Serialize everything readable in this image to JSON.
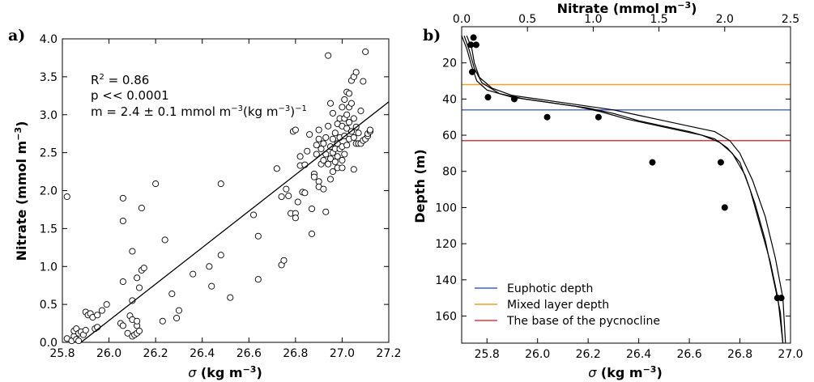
{
  "chart_data": [
    {
      "type": "scatter",
      "panel_label": "a)",
      "xlabel_sym": "σ",
      "xlabel_unit": " (kg m",
      "xlabel_exp": "−3",
      "xlabel_close": ")",
      "ylabel": "Nitrate (mmol m",
      "ylabel_exp": "−3",
      "ylabel_close": ")",
      "xlim": [
        25.8,
        27.2
      ],
      "ylim": [
        0.0,
        4.0
      ],
      "xticks": [
        "25.8",
        "26.0",
        "26.2",
        "26.4",
        "26.6",
        "26.8",
        "27.0",
        "27.2"
      ],
      "yticks": [
        "0.0",
        "0.5",
        "1.0",
        "1.5",
        "2.0",
        "2.5",
        "3.0",
        "3.5",
        "4.0"
      ],
      "grid": false,
      "annotation": {
        "r2_base": "R",
        "r2_sup": "2",
        "r2_rest": "  = 0.86",
        "p_text": "p << 0.0001",
        "m_text": "m = 2.4 ± 0.1 mmol m",
        "m_sup": "−3",
        "m_mid": "(kg m",
        "m_sup2": "−3",
        "m_end": ")",
        "m_sup3": "−1"
      },
      "fit_line": {
        "x": [
          25.88,
          27.2
        ],
        "y": [
          0.0,
          3.17
        ]
      },
      "series": [
        {
          "marker": "open-circle",
          "points": [
            [
              25.82,
              1.92
            ],
            [
              25.82,
              0.05
            ],
            [
              25.84,
              0.02
            ],
            [
              25.85,
              0.08
            ],
            [
              25.85,
              0.15
            ],
            [
              25.86,
              0.04
            ],
            [
              25.86,
              0.18
            ],
            [
              25.87,
              0.12
            ],
            [
              25.87,
              0.02
            ],
            [
              25.88,
              0.14
            ],
            [
              25.89,
              0.1
            ],
            [
              25.9,
              0.16
            ],
            [
              25.9,
              0.4
            ],
            [
              25.91,
              0.36
            ],
            [
              25.92,
              0.38
            ],
            [
              25.93,
              0.33
            ],
            [
              25.94,
              0.18
            ],
            [
              25.95,
              0.2
            ],
            [
              25.95,
              0.36
            ],
            [
              25.97,
              0.42
            ],
            [
              25.99,
              0.5
            ],
            [
              26.05,
              0.25
            ],
            [
              26.06,
              0.22
            ],
            [
              26.06,
              0.8
            ],
            [
              26.06,
              1.6
            ],
            [
              26.06,
              1.9
            ],
            [
              26.08,
              0.12
            ],
            [
              26.09,
              0.35
            ],
            [
              26.1,
              0.3
            ],
            [
              26.1,
              0.08
            ],
            [
              26.11,
              0.1
            ],
            [
              26.1,
              0.55
            ],
            [
              26.1,
              1.2
            ],
            [
              26.12,
              0.12
            ],
            [
              26.12,
              0.22
            ],
            [
              26.12,
              0.28
            ],
            [
              26.13,
              0.15
            ],
            [
              26.12,
              0.85
            ],
            [
              26.13,
              0.72
            ],
            [
              26.14,
              0.95
            ],
            [
              26.14,
              1.77
            ],
            [
              26.15,
              0.98
            ],
            [
              26.2,
              2.09
            ],
            [
              26.23,
              0.28
            ],
            [
              26.24,
              1.35
            ],
            [
              26.27,
              0.64
            ],
            [
              26.29,
              0.32
            ],
            [
              26.3,
              0.42
            ],
            [
              26.36,
              0.9
            ],
            [
              26.43,
              1.0
            ],
            [
              26.44,
              0.74
            ],
            [
              26.48,
              2.09
            ],
            [
              26.48,
              1.15
            ],
            [
              26.52,
              0.59
            ],
            [
              26.62,
              1.68
            ],
            [
              26.64,
              0.83
            ],
            [
              26.64,
              1.4
            ],
            [
              26.72,
              2.29
            ],
            [
              26.74,
              1.02
            ],
            [
              26.75,
              1.08
            ],
            [
              26.74,
              1.92
            ],
            [
              26.76,
              2.02
            ],
            [
              26.77,
              1.93
            ],
            [
              26.78,
              1.7
            ],
            [
              26.79,
              2.78
            ],
            [
              26.8,
              2.8
            ],
            [
              26.8,
              1.7
            ],
            [
              26.8,
              1.64
            ],
            [
              26.81,
              1.85
            ],
            [
              26.82,
              2.45
            ],
            [
              26.82,
              2.33
            ],
            [
              26.83,
              1.98
            ],
            [
              26.84,
              1.97
            ],
            [
              26.84,
              2.34
            ],
            [
              26.85,
              2.52
            ],
            [
              26.86,
              2.74
            ],
            [
              26.87,
              1.43
            ],
            [
              26.87,
              1.76
            ],
            [
              26.88,
              2.22
            ],
            [
              26.88,
              2.18
            ],
            [
              26.89,
              2.48
            ],
            [
              26.89,
              2.6
            ],
            [
              26.9,
              2.12
            ],
            [
              26.9,
              2.05
            ],
            [
              26.9,
              2.68
            ],
            [
              26.9,
              2.8
            ],
            [
              26.91,
              2.35
            ],
            [
              26.91,
              2.55
            ],
            [
              26.92,
              2.02
            ],
            [
              26.92,
              2.4
            ],
            [
              26.92,
              2.62
            ],
            [
              26.93,
              1.72
            ],
            [
              26.93,
              2.48
            ],
            [
              26.93,
              2.7
            ],
            [
              26.94,
              2.35
            ],
            [
              26.94,
              2.85
            ],
            [
              26.94,
              3.78
            ],
            [
              26.95,
              2.15
            ],
            [
              26.95,
              2.42
            ],
            [
              26.95,
              2.58
            ],
            [
              26.95,
              3.15
            ],
            [
              26.96,
              2.25
            ],
            [
              26.96,
              2.5
            ],
            [
              26.96,
              2.68
            ],
            [
              26.96,
              3.02
            ],
            [
              26.97,
              2.38
            ],
            [
              26.97,
              2.55
            ],
            [
              26.97,
              2.76
            ],
            [
              26.98,
              2.45
            ],
            [
              26.98,
              2.62
            ],
            [
              26.98,
              2.88
            ],
            [
              26.98,
              2.3
            ],
            [
              26.99,
              2.55
            ],
            [
              26.99,
              2.7
            ],
            [
              26.99,
              2.95
            ],
            [
              27.0,
              2.58
            ],
            [
              27.0,
              2.3
            ],
            [
              27.0,
              2.85
            ],
            [
              27.0,
              3.1
            ],
            [
              27.0,
              2.4
            ],
            [
              27.01,
              2.72
            ],
            [
              27.01,
              2.48
            ],
            [
              27.01,
              2.95
            ],
            [
              27.01,
              3.2
            ],
            [
              27.02,
              2.6
            ],
            [
              27.02,
              2.82
            ],
            [
              27.02,
              3.3
            ],
            [
              27.02,
              3.0
            ],
            [
              27.03,
              2.68
            ],
            [
              27.03,
              2.9
            ],
            [
              27.03,
              3.28
            ],
            [
              27.03,
              3.1
            ],
            [
              27.04,
              2.78
            ],
            [
              27.04,
              3.15
            ],
            [
              27.04,
              3.45
            ],
            [
              27.05,
              2.7
            ],
            [
              27.05,
              2.28
            ],
            [
              27.05,
              2.95
            ],
            [
              27.05,
              3.5
            ],
            [
              27.06,
              2.62
            ],
            [
              27.06,
              2.84
            ],
            [
              27.06,
              3.56
            ],
            [
              27.07,
              2.62
            ],
            [
              27.07,
              2.76
            ],
            [
              27.08,
              2.62
            ],
            [
              27.08,
              3.05
            ],
            [
              27.09,
              2.66
            ],
            [
              27.09,
              3.44
            ],
            [
              27.1,
              2.68
            ],
            [
              27.1,
              3.83
            ],
            [
              27.11,
              2.72
            ],
            [
              27.11,
              2.75
            ],
            [
              27.12,
              2.78
            ],
            [
              27.12,
              2.8
            ]
          ]
        }
      ]
    },
    {
      "type": "line",
      "panel_label": "b)",
      "xlabel_sym": "σ",
      "xlabel_unit": " (kg m",
      "xlabel_exp": "−3",
      "xlabel_close": ")",
      "x2label": "Nitrate (mmol m",
      "x2label_exp": "−3",
      "x2label_close": ")",
      "ylabel": "Depth (m)",
      "xlim": [
        25.7,
        27.0
      ],
      "x2lim": [
        0.0,
        2.5
      ],
      "ylim": [
        175,
        0
      ],
      "xticks": [
        "25.8",
        "26.0",
        "26.2",
        "26.4",
        "26.6",
        "26.8",
        "27.0"
      ],
      "x2ticks": [
        "0.0",
        "0.5",
        "1.0",
        "1.5",
        "2.0",
        "2.5"
      ],
      "yticks": [
        "20",
        "40",
        "60",
        "80",
        "100",
        "120",
        "140",
        "160"
      ],
      "grid": false,
      "hlines": [
        {
          "name": "Euphotic depth",
          "depth": 46,
          "color": "#3a61d8"
        },
        {
          "name": "Mixed layer depth",
          "depth": 32,
          "color": "#f0a030"
        },
        {
          "name": "The base of the pycnocline",
          "depth": 63,
          "color": "#de3c3c"
        }
      ],
      "legend_position": "lower-left",
      "sigma_profiles": [
        [
          [
            25.7,
            5
          ],
          [
            25.72,
            12
          ],
          [
            25.74,
            22
          ],
          [
            25.76,
            30
          ],
          [
            25.8,
            35
          ],
          [
            25.9,
            39
          ],
          [
            26.0,
            41
          ],
          [
            26.1,
            43
          ],
          [
            26.2,
            45
          ],
          [
            26.3,
            48
          ],
          [
            26.4,
            52
          ],
          [
            26.5,
            55
          ],
          [
            26.6,
            58
          ],
          [
            26.7,
            62
          ],
          [
            26.75,
            67
          ],
          [
            26.8,
            75
          ],
          [
            26.84,
            90
          ],
          [
            26.88,
            110
          ],
          [
            26.92,
            130
          ],
          [
            26.95,
            150
          ],
          [
            26.97,
            175
          ]
        ],
        [
          [
            25.71,
            5
          ],
          [
            25.73,
            13
          ],
          [
            25.75,
            23
          ],
          [
            25.78,
            31
          ],
          [
            25.85,
            37
          ],
          [
            25.95,
            40
          ],
          [
            26.05,
            42
          ],
          [
            26.15,
            44
          ],
          [
            26.25,
            47
          ],
          [
            26.35,
            51
          ],
          [
            26.45,
            54
          ],
          [
            26.55,
            57
          ],
          [
            26.65,
            60
          ],
          [
            26.72,
            64
          ],
          [
            26.77,
            70
          ],
          [
            26.82,
            82
          ],
          [
            26.86,
            98
          ],
          [
            26.9,
            118
          ],
          [
            26.93,
            138
          ],
          [
            26.96,
            158
          ],
          [
            26.97,
            175
          ]
        ],
        [
          [
            25.72,
            5
          ],
          [
            25.74,
            12
          ],
          [
            25.75,
            20
          ],
          [
            25.77,
            28
          ],
          [
            25.82,
            34
          ],
          [
            25.9,
            38
          ],
          [
            26.0,
            40
          ],
          [
            26.1,
            42
          ],
          [
            26.2,
            44
          ],
          [
            26.3,
            46
          ],
          [
            26.4,
            49
          ],
          [
            26.5,
            52
          ],
          [
            26.6,
            55
          ],
          [
            26.7,
            58
          ],
          [
            26.76,
            63
          ],
          [
            26.8,
            70
          ],
          [
            26.85,
            85
          ],
          [
            26.9,
            105
          ],
          [
            26.94,
            128
          ],
          [
            26.97,
            150
          ],
          [
            26.98,
            175
          ]
        ]
      ],
      "nitrate_points": {
        "marker": "filled-circle",
        "points": [
          [
            0.07,
            10
          ],
          [
            0.09,
            6
          ],
          [
            0.11,
            10
          ],
          [
            0.08,
            25
          ],
          [
            0.2,
            39
          ],
          [
            0.4,
            40
          ],
          [
            0.65,
            50
          ],
          [
            1.04,
            50
          ],
          [
            1.45,
            75
          ],
          [
            1.97,
            75
          ],
          [
            2.0,
            100
          ],
          [
            2.4,
            150
          ],
          [
            2.43,
            150
          ]
        ]
      }
    }
  ]
}
